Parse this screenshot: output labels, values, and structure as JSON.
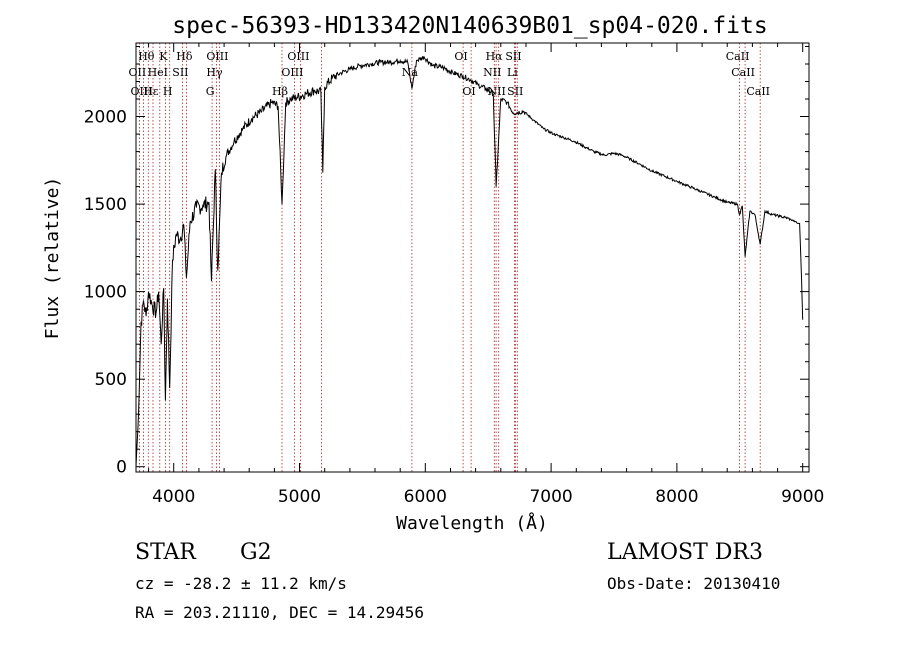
{
  "chart_data": {
    "type": "line",
    "title": "spec-56393-HD133420N140639B01_sp04-020.fits",
    "xlabel": "Wavelength (Å)",
    "ylabel": "Flux (relative)",
    "xlim": [
      3700,
      9050
    ],
    "ylim": [
      -30,
      2420
    ],
    "xticks": [
      4000,
      5000,
      6000,
      7000,
      8000,
      9000
    ],
    "yticks": [
      0,
      500,
      1000,
      1500,
      2000
    ],
    "grid": false,
    "series": [
      {
        "name": "flux",
        "x": [
          3700,
          3720,
          3740,
          3760,
          3780,
          3800,
          3830,
          3860,
          3880,
          3900,
          3920,
          3934,
          3950,
          3968,
          3990,
          4020,
          4050,
          4080,
          4101,
          4130,
          4180,
          4230,
          4280,
          4300,
          4330,
          4350,
          4380,
          4420,
          4480,
          4550,
          4620,
          4700,
          4780,
          4830,
          4861,
          4890,
          4930,
          4980,
          5050,
          5120,
          5170,
          5185,
          5200,
          5260,
          5330,
          5400,
          5480,
          5560,
          5640,
          5720,
          5800,
          5860,
          5893,
          5930,
          5990,
          6060,
          6140,
          6220,
          6300,
          6360,
          6420,
          6480,
          6540,
          6563,
          6600,
          6650,
          6700,
          6780,
          6860,
          6940,
          7020,
          7100,
          7180,
          7260,
          7340,
          7420,
          7500,
          7560,
          7620,
          7700,
          7800,
          7900,
          8000,
          8100,
          8200,
          8300,
          8400,
          8480,
          8498,
          8520,
          8542,
          8580,
          8620,
          8662,
          8700,
          8760,
          8820,
          8880,
          8940,
          8960,
          8975,
          8985,
          9000
        ],
        "y": [
          0,
          300,
          820,
          950,
          860,
          1000,
          920,
          880,
          1000,
          700,
          1020,
          380,
          960,
          450,
          1180,
          1330,
          1300,
          1380,
          1080,
          1400,
          1480,
          1490,
          1510,
          1060,
          1700,
          1120,
          1680,
          1780,
          1860,
          1930,
          1990,
          2030,
          2080,
          2060,
          1500,
          2080,
          2100,
          2110,
          2130,
          2150,
          2140,
          1680,
          2170,
          2220,
          2250,
          2270,
          2290,
          2300,
          2310,
          2310,
          2320,
          2310,
          2160,
          2320,
          2340,
          2290,
          2280,
          2250,
          2230,
          2210,
          2180,
          2160,
          2130,
          1600,
          2100,
          2080,
          2020,
          2030,
          1980,
          1930,
          1900,
          1880,
          1860,
          1830,
          1800,
          1780,
          1790,
          1780,
          1760,
          1730,
          1690,
          1660,
          1630,
          1600,
          1570,
          1540,
          1510,
          1500,
          1440,
          1490,
          1200,
          1460,
          1440,
          1270,
          1460,
          1440,
          1430,
          1420,
          1400,
          1390,
          1390,
          1200,
          840
        ]
      }
    ],
    "line_labels": [
      {
        "text": "Hθ",
        "x": 3798,
        "row": 1
      },
      {
        "text": "K",
        "x": 3934,
        "row": 1
      },
      {
        "text": "Hδ",
        "x": 4101,
        "row": 1
      },
      {
        "text": "OIII",
        "x": 4363,
        "row": 1
      },
      {
        "text": "OIII",
        "x": 5007,
        "row": 1
      },
      {
        "text": "OI",
        "x": 6300,
        "row": 1
      },
      {
        "text": "Hα",
        "x": 6563,
        "row": 1
      },
      {
        "text": "SII",
        "x": 6717,
        "row": 1
      },
      {
        "text": "CaII",
        "x": 8498,
        "row": 1
      },
      {
        "text": "OII",
        "x": 3727,
        "row": 2
      },
      {
        "text": "HeI",
        "x": 3889,
        "row": 2
      },
      {
        "text": "SII",
        "x": 4069,
        "row": 2
      },
      {
        "text": "Hγ",
        "x": 4340,
        "row": 2
      },
      {
        "text": "OIII",
        "x": 4959,
        "row": 2
      },
      {
        "text": "Na",
        "x": 5893,
        "row": 2
      },
      {
        "text": "NII",
        "x": 6548,
        "row": 2
      },
      {
        "text": "Li",
        "x": 6708,
        "row": 2
      },
      {
        "text": "CaII",
        "x": 8542,
        "row": 2
      },
      {
        "text": "OIII",
        "x": 3760,
        "row": 3
      },
      {
        "text": "Hε",
        "x": 3835,
        "row": 3
      },
      {
        "text": "H",
        "x": 3968,
        "row": 3
      },
      {
        "text": "G",
        "x": 4305,
        "row": 3
      },
      {
        "text": "Hβ",
        "x": 4861,
        "row": 3
      },
      {
        "text": "OI",
        "x": 6364,
        "row": 3
      },
      {
        "text": "NII",
        "x": 6583,
        "row": 3
      },
      {
        "text": "SII",
        "x": 6731,
        "row": 3
      },
      {
        "text": "CaII",
        "x": 8662,
        "row": 3
      }
    ],
    "line_positions": [
      3727,
      3760,
      3798,
      3835,
      3889,
      3934,
      3968,
      4069,
      4101,
      4305,
      4340,
      4363,
      4861,
      4959,
      5007,
      5175,
      5893,
      6300,
      6364,
      6548,
      6563,
      6583,
      6708,
      6717,
      6731,
      8498,
      8542,
      8662
    ]
  },
  "info": {
    "object_class": "STAR",
    "subclass": "G2",
    "survey": "LAMOST DR3",
    "cz": "cz = -28.2 ± 11.2 km/s",
    "obs_date": "Obs-Date: 20130410",
    "coords": "RA = 203.21110, DEC =  14.29456"
  }
}
